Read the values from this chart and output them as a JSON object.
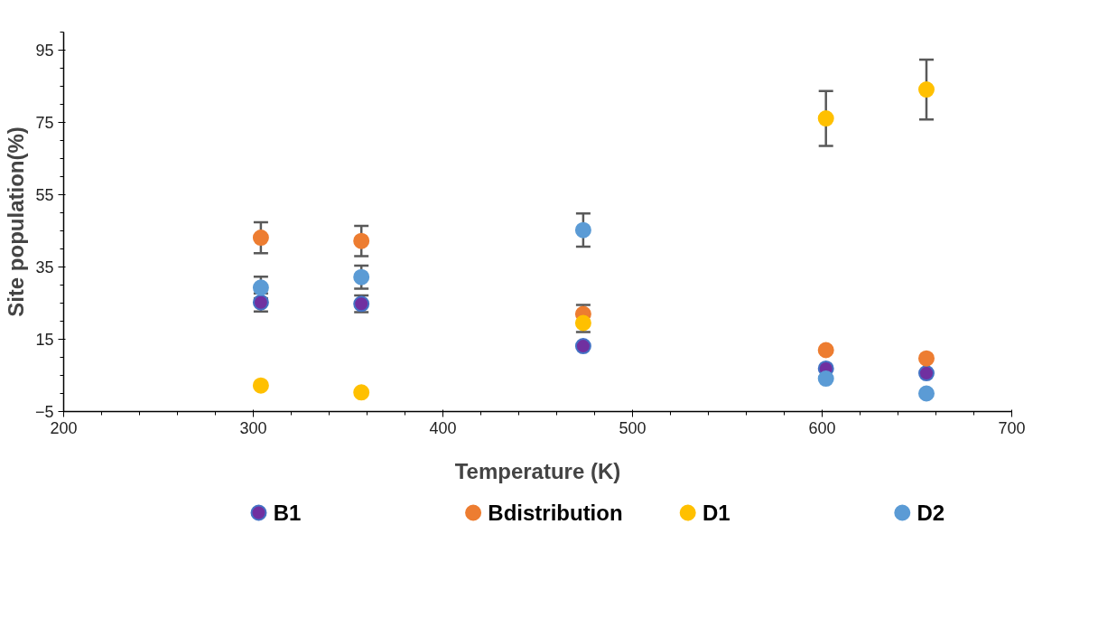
{
  "chart_data": {
    "type": "scatter",
    "xlabel": "Temperature (K)",
    "ylabel": "Site population(%)",
    "x": [
      304,
      357,
      474,
      602,
      655
    ],
    "series": [
      {
        "name": "B1",
        "color": "#7030a0",
        "values": [
          25.2,
          24.8,
          13.1,
          6.9,
          5.6
        ],
        "errors": [
          2.5,
          2.3,
          null,
          null,
          null
        ]
      },
      {
        "name": "Bdistribution",
        "color": "#ed7d31",
        "values": [
          43.1,
          42.2,
          22,
          12,
          9.7
        ],
        "errors": [
          4.3,
          4.2,
          2.5,
          null,
          null
        ]
      },
      {
        "name": "D1",
        "color": "#ffc000",
        "values": [
          2.2,
          0.3,
          19.5,
          76.1,
          84.1
        ],
        "errors": [
          null,
          null,
          2.5,
          7.6,
          8.3
        ]
      },
      {
        "name": "D2",
        "color": "#5b9bd5",
        "values": [
          29.3,
          32.2,
          45.2,
          4.1,
          0
        ],
        "errors": [
          3,
          3.2,
          4.6,
          null,
          null
        ]
      }
    ],
    "xlim": [
      200,
      700
    ],
    "xticks": [
      200,
      300,
      400,
      500,
      600,
      700
    ],
    "ylim": [
      -5,
      100
    ],
    "yticks": [
      -5,
      15,
      35,
      55,
      75,
      95
    ],
    "grid": false,
    "legend": "bottom",
    "marker": "circle"
  }
}
